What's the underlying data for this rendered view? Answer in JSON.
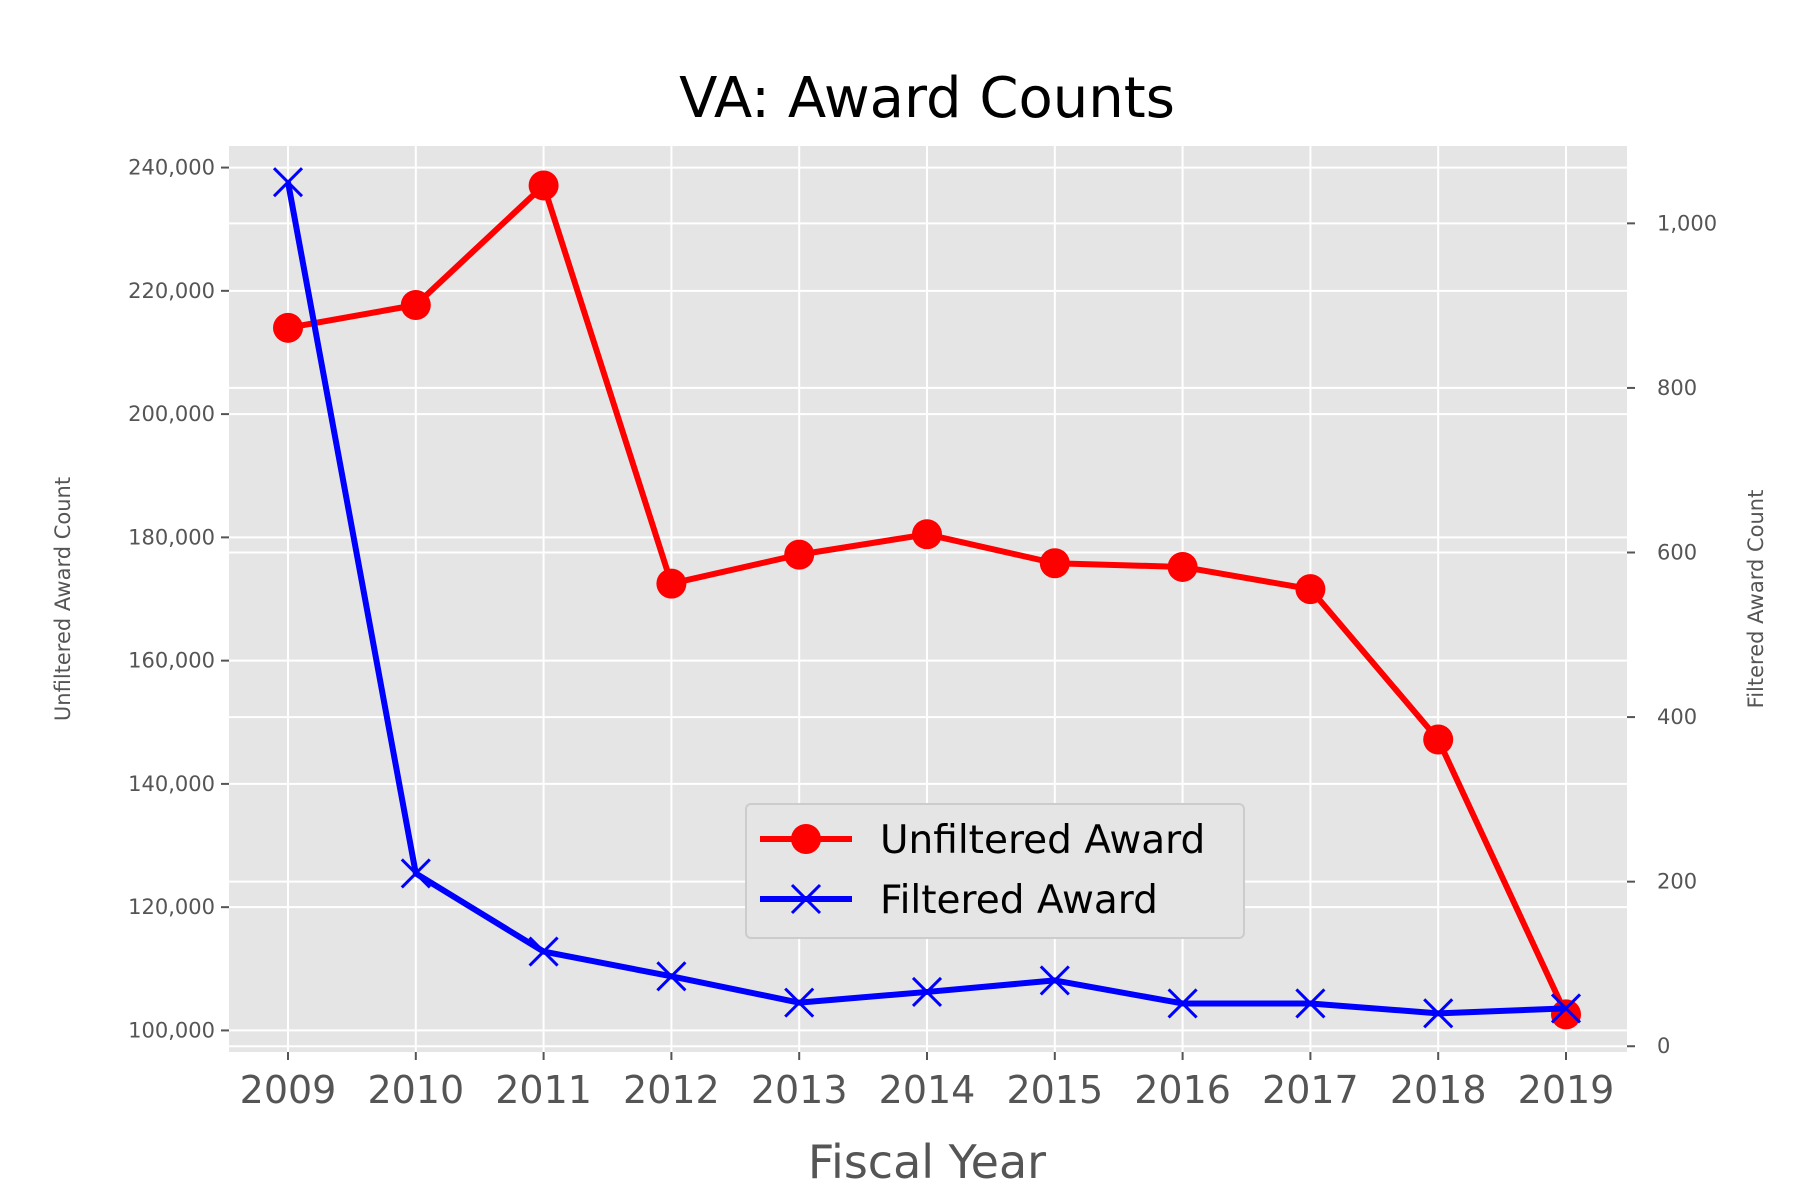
{
  "chart_data": {
    "type": "line",
    "title": "VA: Award Counts",
    "xlabel": "Fiscal Year",
    "ylabel": "Unfiltered Award Count",
    "ylabel_right": "Filtered Award Count",
    "x": [
      "2009",
      "2010",
      "2011",
      "2012",
      "2013",
      "2014",
      "2015",
      "2016",
      "2017",
      "2018",
      "2019"
    ],
    "ylim": [
      96500,
      243500
    ],
    "ylim_right": [
      -7,
      1094
    ],
    "yticks": [
      100000,
      120000,
      140000,
      160000,
      180000,
      200000,
      220000,
      240000
    ],
    "yticks_right": [
      0,
      200,
      400,
      600,
      800,
      1000
    ],
    "ytick_labels": [
      "100,000",
      "120,000",
      "140,000",
      "160,000",
      "180,000",
      "200,000",
      "220,000",
      "240,000"
    ],
    "ytick_labels_right": [
      "0",
      "200",
      "400",
      "600",
      "800",
      "1,000"
    ],
    "grid": true,
    "legend_position": "lower-center",
    "series": [
      {
        "name": "Unfiltered Award",
        "axis": "left",
        "color": "#ff0000",
        "marker": "circle",
        "values": [
          214000,
          217700,
          237100,
          172500,
          177200,
          180500,
          175800,
          175200,
          171600,
          147200,
          102600
        ]
      },
      {
        "name": "Filtered Award",
        "axis": "right",
        "color": "#0000ff",
        "marker": "x",
        "values": [
          1050,
          210,
          115,
          85,
          53,
          66,
          80,
          52,
          52,
          40,
          46
        ]
      }
    ]
  }
}
